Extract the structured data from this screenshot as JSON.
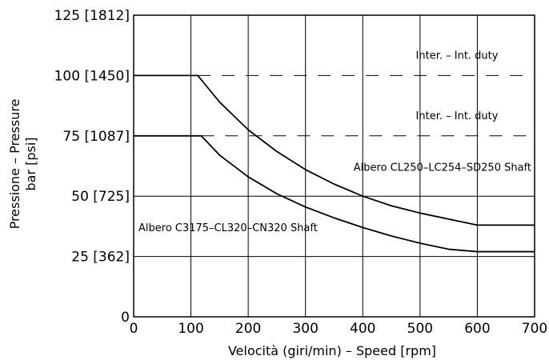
{
  "chart_data": {
    "type": "line",
    "xlabel": "Velocità (giri/min) – Speed [rpm]",
    "ylabel_line1": "Pressione – Pressure",
    "ylabel_line2": "bar [psi]",
    "xlim": [
      0,
      700
    ],
    "ylim": [
      0,
      125
    ],
    "grid": true,
    "x_ticks": [
      {
        "value": 0,
        "label": "0"
      },
      {
        "value": 100,
        "label": "100"
      },
      {
        "value": 200,
        "label": "200"
      },
      {
        "value": 300,
        "label": "300"
      },
      {
        "value": 400,
        "label": "400"
      },
      {
        "value": 500,
        "label": "500"
      },
      {
        "value": 600,
        "label": "600"
      },
      {
        "value": 700,
        "label": "700"
      }
    ],
    "y_ticks": [
      {
        "value": 0,
        "label": "0"
      },
      {
        "value": 25,
        "label": "25 [362]"
      },
      {
        "value": 50,
        "label": "50 [725]"
      },
      {
        "value": 75,
        "label": "75 [1087]"
      },
      {
        "value": 100,
        "label": "100 [1450]"
      },
      {
        "value": 125,
        "label": "125 [1812]"
      }
    ],
    "dashed_levels": [
      {
        "y": 100,
        "label": "Inter. – Int. duty"
      },
      {
        "y": 75,
        "label": "Inter. – Int. duty"
      }
    ],
    "series": [
      {
        "name": "Albero CL250–LC254–SD250 Shaft",
        "x": [
          0,
          112,
          150,
          200,
          250,
          300,
          350,
          400,
          450,
          500,
          550,
          600,
          700
        ],
        "y": [
          100,
          100,
          89,
          77.5,
          68.5,
          61,
          55,
          50,
          46,
          43,
          40.5,
          38,
          38
        ]
      },
      {
        "name": "Albero C3175–CL320–CN320 Shaft",
        "x": [
          0,
          118,
          150,
          200,
          250,
          300,
          350,
          400,
          450,
          500,
          550,
          600,
          700
        ],
        "y": [
          75,
          75,
          67,
          58,
          51,
          45.5,
          41,
          37,
          33.5,
          30.5,
          28,
          27,
          27
        ]
      }
    ]
  }
}
